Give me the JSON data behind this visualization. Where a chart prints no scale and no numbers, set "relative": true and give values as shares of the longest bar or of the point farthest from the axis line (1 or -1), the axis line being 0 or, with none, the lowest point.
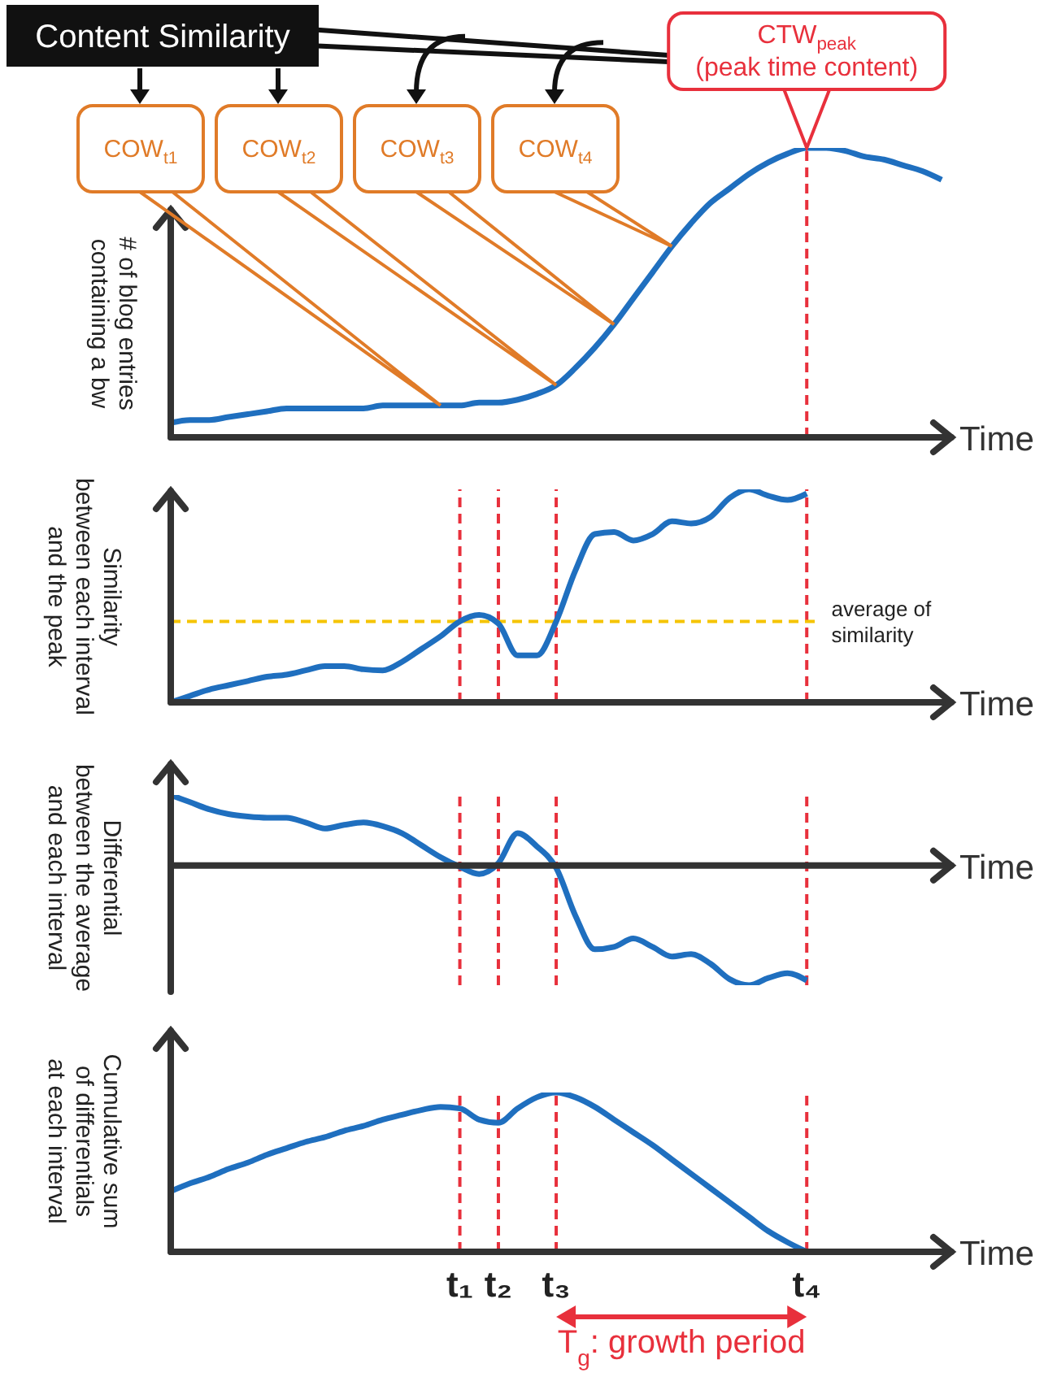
{
  "chart_data": [
    {
      "type": "line",
      "relative": true,
      "categories": [
        null,
        null,
        null,
        null,
        null,
        null,
        null,
        null,
        null,
        null,
        null,
        null,
        null,
        null,
        null,
        "t₁",
        null,
        "t₂",
        null,
        null,
        "t₃",
        null,
        null,
        null,
        null,
        null,
        null,
        null,
        null,
        null,
        null,
        null,
        null,
        "t₄",
        null,
        null,
        null,
        null,
        null,
        null,
        null
      ],
      "values": [
        0.05,
        0.06,
        0.06,
        0.07,
        0.08,
        0.09,
        0.1,
        0.1,
        0.1,
        0.1,
        0.1,
        0.11,
        0.11,
        0.11,
        0.11,
        0.11,
        0.12,
        0.12,
        0.13,
        0.15,
        0.18,
        0.24,
        0.31,
        0.39,
        0.48,
        0.57,
        0.66,
        0.74,
        0.81,
        0.86,
        0.91,
        0.95,
        0.98,
        1,
        1,
        0.99,
        0.97,
        0.96,
        0.94,
        0.92,
        0.89
      ],
      "color": "#1f6fbf",
      "xlabel": "Time",
      "ylabel": "# of blog entries\ncontaining a bw",
      "tick_labels": false,
      "ref_lines": [
        {
          "axis": "x",
          "value": "t₄",
          "color": "#e8303c",
          "line_style": "dashed"
        }
      ],
      "annotations": [
        "Content Similarity",
        "COW$_{t1}$",
        "COW$_{t2}$",
        "COW$_{t3}$",
        "COW$_{t4}$",
        {
          "text": "CTW$_{peak}$\n(peak time content)",
          "x": "t₄",
          "y": 1
        }
      ]
    },
    {
      "type": "line",
      "relative": true,
      "categories": [
        null,
        null,
        null,
        null,
        null,
        null,
        null,
        null,
        null,
        null,
        null,
        null,
        null,
        null,
        null,
        "t₁",
        null,
        "t₂",
        null,
        null,
        "t₃",
        null,
        null,
        null,
        null,
        null,
        null,
        null,
        null,
        null,
        null,
        null,
        null,
        "t₄"
      ],
      "values": [
        0,
        0.03,
        0.06,
        0.08,
        0.1,
        0.12,
        0.13,
        0.15,
        0.17,
        0.17,
        0.155,
        0.15,
        0.19,
        0.25,
        0.31,
        0.38,
        0.41,
        0.37,
        0.22,
        0.22,
        0.38,
        0.62,
        0.79,
        0.8,
        0.76,
        0.79,
        0.85,
        0.84,
        0.87,
        0.96,
        1,
        0.97,
        0.95,
        0.98
      ],
      "color": "#1f6fbf",
      "xlabel": "Time",
      "ylabel": "Similarity\nbetween each interval\nand the peak",
      "tick_labels": false,
      "ref_lines": [
        {
          "axis": "x",
          "value": "t₁",
          "color": "#e8303c",
          "line_style": "dashed"
        },
        {
          "axis": "x",
          "value": "t₂",
          "color": "#e8303c",
          "line_style": "dashed"
        },
        {
          "axis": "x",
          "value": "t₃",
          "color": "#e8303c",
          "line_style": "dashed"
        },
        {
          "axis": "x",
          "value": "t₄",
          "color": "#e8303c",
          "line_style": "dashed"
        },
        {
          "axis": "y",
          "value": 0.38,
          "label": "average of similarity",
          "color": "#f5c400",
          "line_style": "dashed"
        }
      ]
    },
    {
      "type": "line",
      "relative": true,
      "categories": [
        null,
        null,
        null,
        null,
        null,
        null,
        null,
        null,
        null,
        null,
        null,
        null,
        null,
        null,
        null,
        "t₁",
        null,
        "t₂",
        null,
        null,
        "t₃",
        null,
        null,
        null,
        null,
        null,
        null,
        null,
        null,
        null,
        null,
        null,
        null,
        "t₄"
      ],
      "values": [
        0.59,
        0.53,
        0.47,
        0.43,
        0.41,
        0.4,
        0.4,
        0.36,
        0.31,
        0.34,
        0.36,
        0.33,
        0.27,
        0.17,
        0.07,
        -0.01,
        -0.07,
        0.02,
        0.27,
        0.16,
        -0.02,
        -0.42,
        -0.7,
        -0.68,
        -0.61,
        -0.68,
        -0.76,
        -0.74,
        -0.82,
        -0.95,
        -1,
        -0.94,
        -0.9,
        -0.96
      ],
      "color": "#1f6fbf",
      "xlabel": "Time",
      "ylabel": "Differential\nbetween the average\nand each interval",
      "tick_labels": false,
      "ref_lines": [
        {
          "axis": "x",
          "value": "t₁",
          "color": "#e8303c",
          "line_style": "dashed"
        },
        {
          "axis": "x",
          "value": "t₂",
          "color": "#e8303c",
          "line_style": "dashed"
        },
        {
          "axis": "x",
          "value": "t₃",
          "color": "#e8303c",
          "line_style": "dashed"
        },
        {
          "axis": "x",
          "value": "t₄",
          "color": "#e8303c",
          "line_style": "dashed"
        }
      ]
    },
    {
      "type": "line",
      "relative": true,
      "categories": [
        null,
        null,
        null,
        null,
        null,
        null,
        null,
        null,
        null,
        null,
        null,
        null,
        null,
        null,
        null,
        "t₁",
        null,
        "t₂",
        null,
        null,
        "t₃",
        null,
        null,
        null,
        null,
        null,
        null,
        null,
        null,
        null,
        null,
        null,
        null,
        "t₄"
      ],
      "values": [
        0.38,
        0.43,
        0.47,
        0.52,
        0.56,
        0.61,
        0.65,
        0.69,
        0.72,
        0.76,
        0.79,
        0.83,
        0.86,
        0.89,
        0.91,
        0.9,
        0.83,
        0.81,
        0.9,
        0.97,
        1,
        0.97,
        0.91,
        0.83,
        0.75,
        0.67,
        0.58,
        0.49,
        0.4,
        0.31,
        0.22,
        0.13,
        0.06,
        0
      ],
      "color": "#1f6fbf",
      "xlabel": "Time",
      "ylabel": "Cumulative sum\nof differentials\nat each interval",
      "ref_lines": [
        {
          "axis": "x",
          "value": "t₁",
          "color": "#e8303c",
          "line_style": "dashed"
        },
        {
          "axis": "x",
          "value": "t₂",
          "color": "#e8303c",
          "line_style": "dashed"
        },
        {
          "axis": "x",
          "value": "t₃",
          "color": "#e8303c",
          "line_style": "dashed"
        },
        {
          "axis": "x",
          "value": "t₄",
          "color": "#e8303c",
          "line_style": "dashed"
        }
      ],
      "annotations": [
        "T$_{g}$: growth period"
      ]
    }
  ]
}
